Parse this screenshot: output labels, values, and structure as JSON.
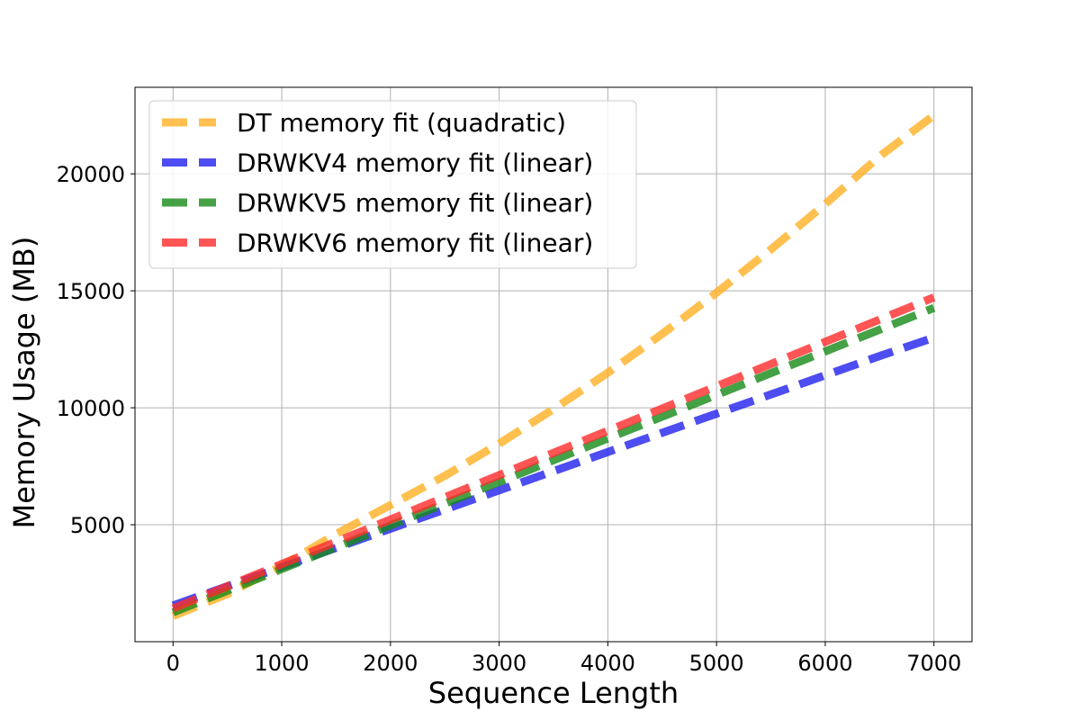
{
  "chart_data": {
    "type": "line",
    "title": "",
    "xlabel": "Sequence Length",
    "ylabel": "Memory Usage (MB)",
    "xlim": [
      -350,
      7350
    ],
    "ylim": [
      0,
      23700
    ],
    "xticks": [
      0,
      1000,
      2000,
      3000,
      4000,
      5000,
      6000,
      7000
    ],
    "xtick_labels": [
      "0",
      "1000",
      "2000",
      "3000",
      "4000",
      "5000",
      "6000",
      "7000"
    ],
    "yticks": [
      5000,
      10000,
      15000,
      20000
    ],
    "ytick_labels": [
      "5000",
      "10000",
      "15000",
      "20000"
    ],
    "grid": true,
    "legend_position": "upper-left",
    "x": [
      0,
      500,
      1000,
      1500,
      2000,
      2500,
      3000,
      3500,
      4000,
      4500,
      5000,
      5500,
      6000,
      6500,
      7000
    ],
    "series": [
      {
        "name": "DT memory fit (quadratic)",
        "color": "#ffb023",
        "style": "dashed",
        "values": [
          1100,
          2040,
          3240,
          4600,
          5840,
          7090,
          8470,
          9940,
          11500,
          13160,
          14920,
          16770,
          18710,
          20750,
          22500
        ]
      },
      {
        "name": "DRWKV4 memory fit (linear)",
        "color": "#2020ee",
        "style": "dashed",
        "values": [
          1550,
          2370,
          3190,
          4010,
          4830,
          5650,
          6470,
          7290,
          8110,
          8930,
          9750,
          10570,
          11390,
          12210,
          13000
        ]
      },
      {
        "name": "DRWKV5 memory fit (linear)",
        "color": "#178a17",
        "style": "dashed",
        "values": [
          1250,
          2180,
          3110,
          4040,
          4970,
          5900,
          6830,
          7760,
          8690,
          9620,
          10550,
          11480,
          12410,
          13340,
          14270
        ]
      },
      {
        "name": "DRWKV6 memory fit (linear)",
        "color": "#ff2a2a",
        "style": "dashed",
        "values": [
          1420,
          2370,
          3320,
          4270,
          5220,
          6170,
          7120,
          8070,
          9020,
          9970,
          10920,
          11870,
          12820,
          13770,
          14720
        ]
      }
    ]
  }
}
